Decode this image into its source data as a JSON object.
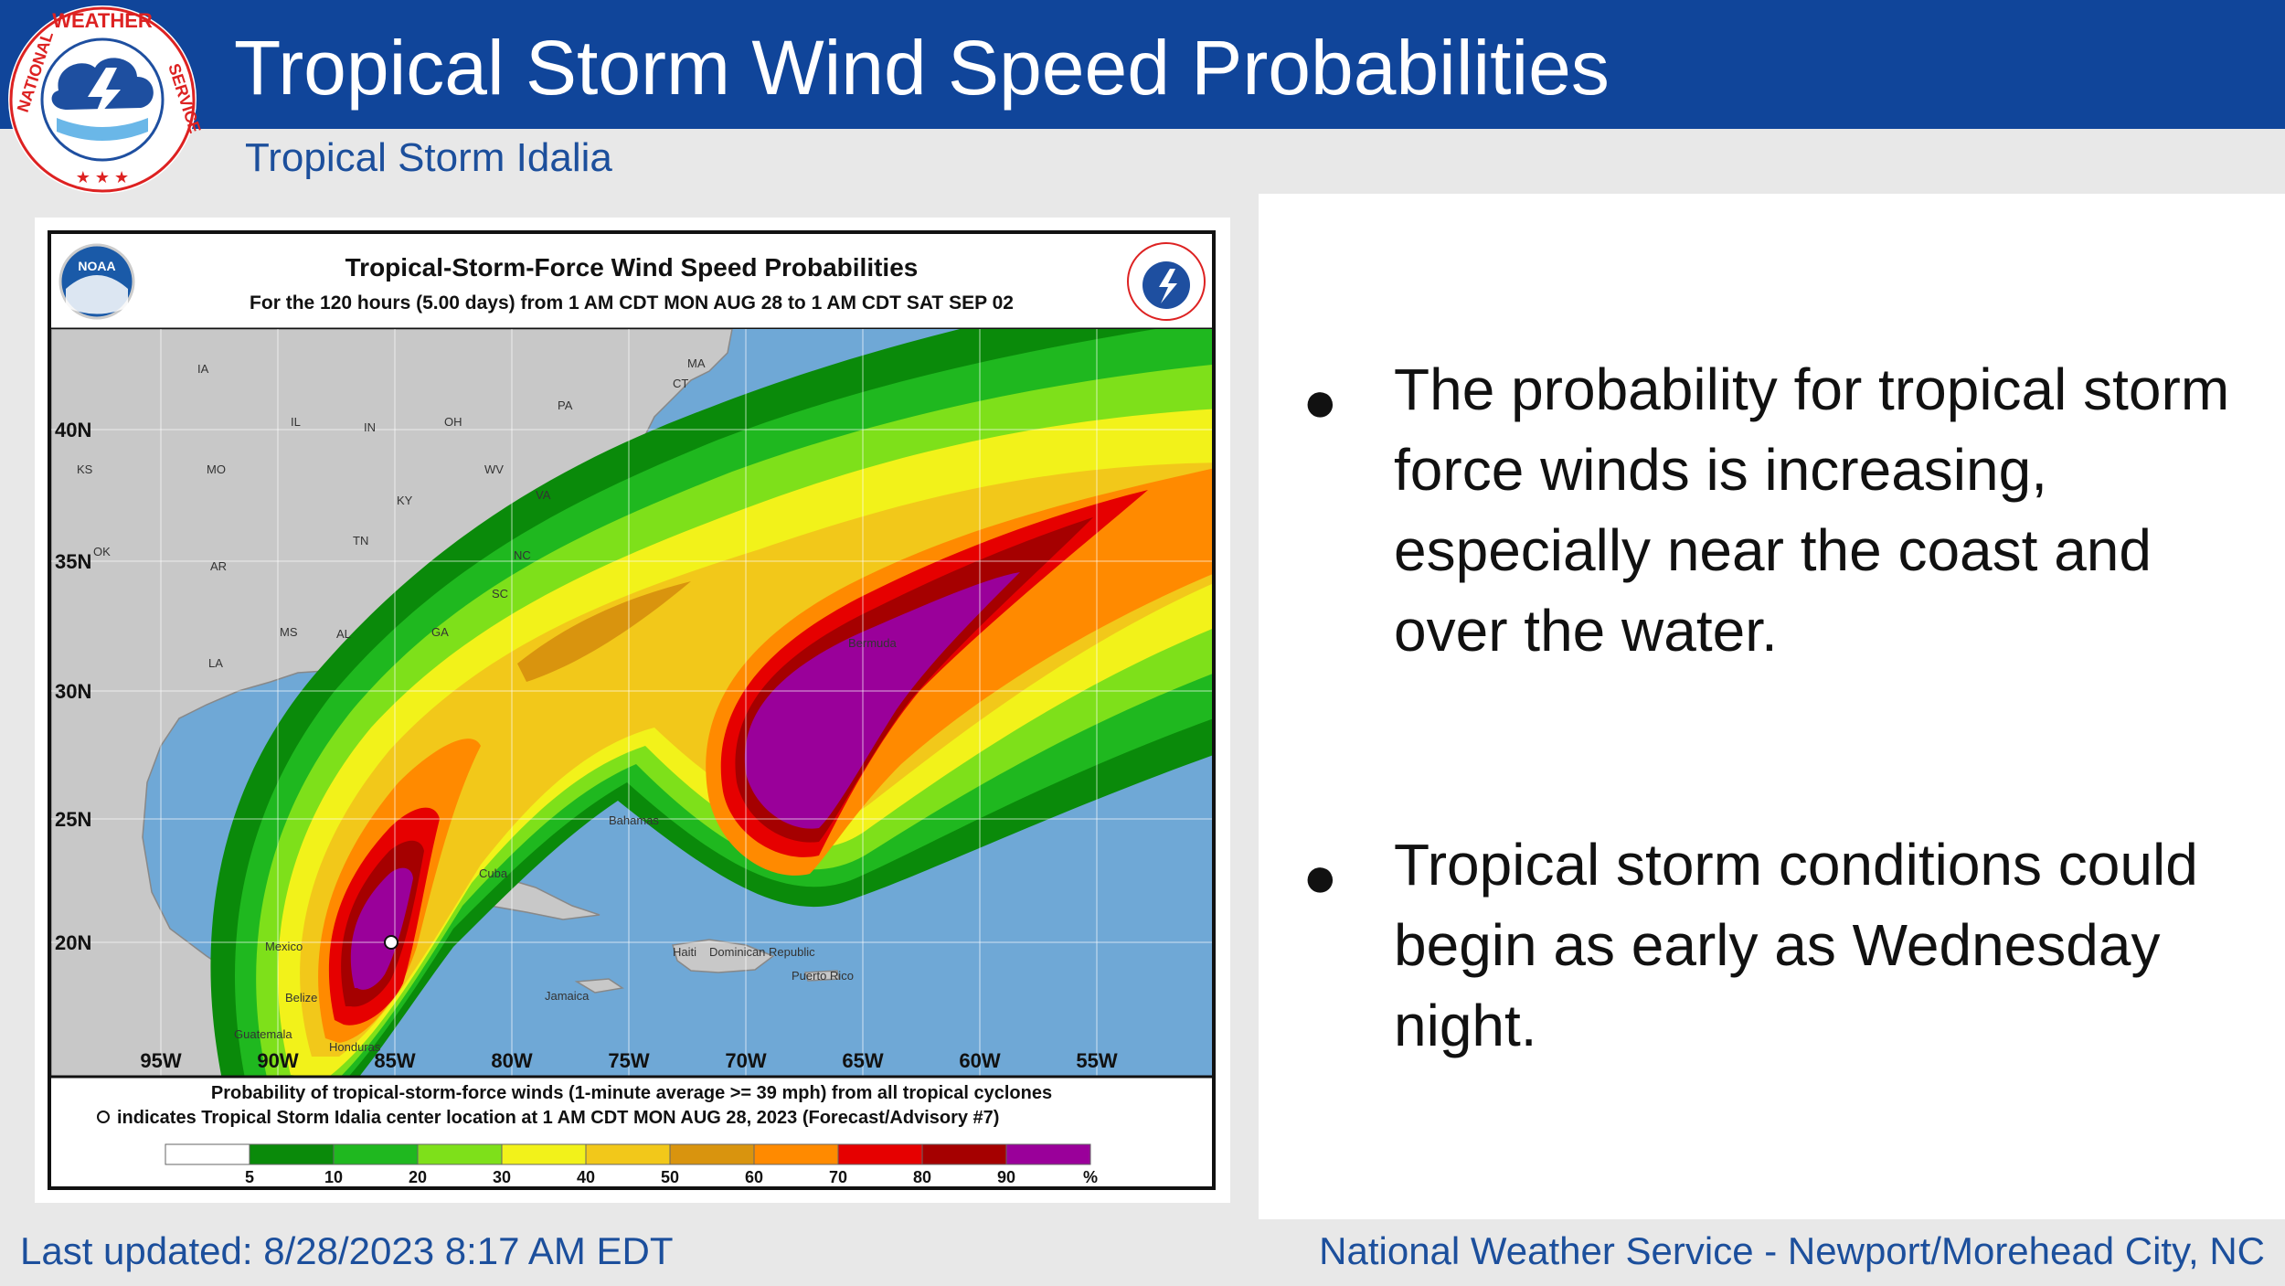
{
  "header": {
    "title": "Tropical Storm Wind Speed Probabilities",
    "subtitle": "Tropical Storm Idalia",
    "logo_text": "NATIONAL WEATHER SERVICE"
  },
  "map": {
    "title": "Tropical-Storm-Force Wind Speed Probabilities",
    "period": "For the 120 hours (5.00 days) from 1 AM CDT MON AUG 28 to 1 AM CDT SAT SEP 02",
    "noaa_label": "NOAA",
    "lat_labels": [
      "40N",
      "35N",
      "30N",
      "25N",
      "20N"
    ],
    "lon_labels": [
      "95W",
      "90W",
      "85W",
      "80W",
      "75W",
      "70W",
      "65W",
      "60W",
      "55W"
    ],
    "place_labels": [
      "IA",
      "IL",
      "IN",
      "OH",
      "PA",
      "MA",
      "CT",
      "KS",
      "MO",
      "WV",
      "VA",
      "KY",
      "OK",
      "AR",
      "TN",
      "NC",
      "SC",
      "MS",
      "AL",
      "GA",
      "LA",
      "Bermuda",
      "Bahamas",
      "Cuba",
      "Mexico",
      "Belize",
      "Guatemala",
      "Honduras",
      "Jamaica",
      "Haiti",
      "Dominican Republic",
      "Puerto Rico"
    ],
    "footnote_line1": "Probability of tropical-storm-force winds (1-minute average >= 39 mph) from all tropical cyclones",
    "footnote_line2": "indicates Tropical Storm Idalia center location at 1 AM CDT MON AUG 28, 2023 (Forecast/Advisory #7)",
    "legend_values": [
      "5",
      "10",
      "20",
      "30",
      "40",
      "50",
      "60",
      "70",
      "80",
      "90",
      "%"
    ],
    "legend_colors": [
      "#ffffff",
      "#0a8a0a",
      "#1fb81f",
      "#7ee01a",
      "#f2f21a",
      "#f2c81a",
      "#d9940e",
      "#ff8a00",
      "#e60000",
      "#a50000",
      "#9a009a"
    ]
  },
  "bullets": [
    "The probability for tropical storm force winds is increasing, especially near the coast and over the water.",
    "Tropical storm conditions could begin as early as Wednesday night."
  ],
  "footer": {
    "updated": "Last updated: 8/28/2023 8:17 AM EDT",
    "office": "National Weather Service - Newport/Morehead City, NC"
  },
  "colors": {
    "header_blue": "#10459a",
    "text_blue": "#1c4f9c",
    "ocean": "#6fa8d6",
    "land": "#c8c8c8"
  }
}
